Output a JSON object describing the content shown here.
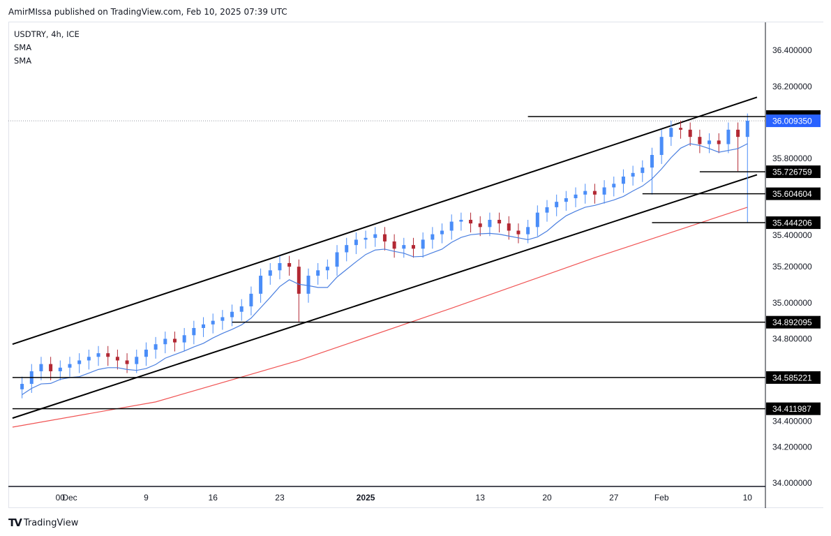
{
  "header": {
    "published": "AmirMIssa published on TradingView.com, Feb 10, 2025 07:39 UTC"
  },
  "legend": {
    "symbol": "USDTRY, 4h, ICE",
    "ind1": "SMA",
    "ind2": "SMA"
  },
  "footer": {
    "brand": "TradingView"
  },
  "colors": {
    "up": "#4a8df8",
    "down": "#b22833",
    "sma_fast": "#4a7fe0",
    "sma_slow": "#f05353",
    "last_price": "#2962ff",
    "level": "#000000"
  },
  "chart_data": {
    "type": "candlestick",
    "title": "USDTRY, 4h, ICE",
    "ylim": [
      34.0,
      36.5
    ],
    "y_ticks": [
      "34.000000",
      "34.200000",
      "34.400000",
      "34.800000",
      "35.000000",
      "35.200000",
      "35.400000",
      "35.800000",
      "36.200000",
      "36.400000"
    ],
    "x_ticks": [
      {
        "label": "00",
        "date": "2024-11-30"
      },
      {
        "label": "Dec",
        "date": "2024-12-01"
      },
      {
        "label": "9",
        "date": "2024-12-09"
      },
      {
        "label": "16",
        "date": "2024-12-16"
      },
      {
        "label": "23",
        "date": "2024-12-23"
      },
      {
        "label": "2025",
        "date": "2025-01-01",
        "bold": true
      },
      {
        "label": "13",
        "date": "2025-01-13"
      },
      {
        "label": "20",
        "date": "2025-01-20"
      },
      {
        "label": "27",
        "date": "2025-01-27"
      },
      {
        "label": "Feb",
        "date": "2025-02-01"
      },
      {
        "label": "10",
        "date": "2025-02-10"
      }
    ],
    "dates_range": [
      "2024-11-26",
      "2025-02-10"
    ],
    "closes": [
      34.55,
      34.62,
      34.66,
      34.62,
      34.64,
      34.66,
      34.68,
      34.7,
      34.72,
      34.7,
      34.68,
      34.66,
      34.7,
      34.74,
      34.77,
      34.8,
      34.78,
      34.82,
      34.86,
      34.88,
      34.9,
      34.92,
      34.95,
      34.98,
      35.05,
      35.15,
      35.18,
      35.22,
      35.2,
      35.05,
      35.15,
      35.18,
      35.2,
      35.28,
      35.32,
      35.35,
      35.36,
      35.38,
      35.34,
      35.3,
      35.32,
      35.3,
      35.35,
      35.38,
      35.4,
      35.45,
      35.46,
      35.44,
      35.42,
      35.46,
      35.44,
      35.4,
      35.38,
      35.42,
      35.5,
      35.53,
      35.56,
      35.58,
      35.6,
      35.62,
      35.6,
      35.64,
      35.66,
      35.7,
      35.72,
      35.75,
      35.82,
      35.92,
      35.97,
      35.96,
      35.92,
      35.88,
      35.9,
      35.88,
      35.96,
      35.92,
      36.01
    ],
    "low_overrides": {
      "2024-12-25": 34.892,
      "2025-01-31": 35.6,
      "2025-02-09": 35.73,
      "2025-02-10": 35.444
    },
    "last_price": "36.009350",
    "sma_slow": [
      {
        "date": "2024-11-25",
        "value": 34.31
      },
      {
        "date": "2024-12-10",
        "value": 34.45
      },
      {
        "date": "2024-12-25",
        "value": 34.68
      },
      {
        "date": "2025-01-10",
        "value": 34.97
      },
      {
        "date": "2025-01-25",
        "value": 35.25
      },
      {
        "date": "2025-02-10",
        "value": 35.53
      }
    ],
    "channel": [
      {
        "from": {
          "date": "2024-11-25",
          "value": 34.77
        },
        "to": {
          "date": "2025-02-11",
          "value": 36.14
        }
      },
      {
        "from": {
          "date": "2024-11-25",
          "value": 34.36
        },
        "to": {
          "date": "2025-02-11",
          "value": 35.71
        }
      }
    ],
    "levels": [
      {
        "value": 36.033,
        "from": "2025-01-18",
        "label": ""
      },
      {
        "value": 35.726759,
        "from": "2025-02-05",
        "label": "35.726759"
      },
      {
        "value": 35.604604,
        "from": "2025-01-30",
        "label": "35.604604"
      },
      {
        "value": 35.444206,
        "from": "2025-01-31",
        "label": "35.444206"
      },
      {
        "value": 34.892095,
        "from": "2024-12-18",
        "label": "34.892095"
      },
      {
        "value": 34.585221,
        "from": "2024-11-25",
        "label": "34.585221"
      },
      {
        "value": 34.411987,
        "from": "2024-11-25",
        "label": "34.411987"
      }
    ]
  }
}
